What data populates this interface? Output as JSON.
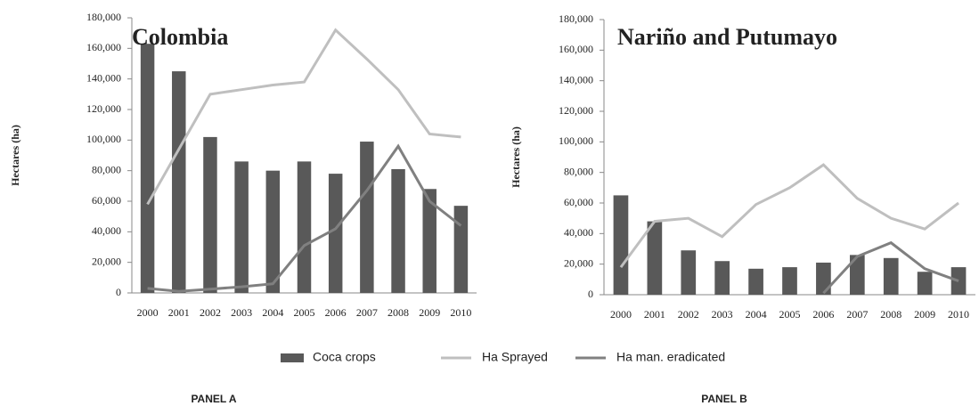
{
  "chart_data": [
    {
      "type": "combo",
      "title": "Colombia",
      "ylabel": "Hectares (ha)",
      "panel_label": "PANEL A",
      "categories": [
        "2000",
        "2001",
        "2002",
        "2003",
        "2004",
        "2005",
        "2006",
        "2007",
        "2008",
        "2009",
        "2010"
      ],
      "series": [
        {
          "name": "Coca crops",
          "kind": "bar",
          "color": "#595959",
          "values": [
            163000,
            145000,
            102000,
            86000,
            80000,
            86000,
            78000,
            99000,
            81000,
            68000,
            57000
          ]
        },
        {
          "name": "Ha Sprayed",
          "kind": "line",
          "color": "#bfbfbf",
          "values": [
            58000,
            94000,
            130000,
            133000,
            136000,
            138000,
            172000,
            153000,
            133000,
            104000,
            102000
          ]
        },
        {
          "name": "Ha man. eradicated",
          "kind": "line",
          "color": "#808080",
          "values": [
            3000,
            1000,
            2500,
            4000,
            6000,
            31000,
            42000,
            67000,
            96000,
            60000,
            44000
          ]
        }
      ],
      "ylim": [
        0,
        180000
      ],
      "yticks": [
        0,
        {
          "value": 20000,
          "label": "20,000"
        },
        {
          "value": 40000,
          "label": "40,000"
        },
        {
          "value": 60000,
          "label": "60,000"
        },
        {
          "value": 80000,
          "label": "80,000"
        },
        {
          "value": 100000,
          "label": "100,000"
        },
        {
          "value": 120000,
          "label": "120,000"
        },
        {
          "value": 140000,
          "label": "140,000"
        },
        {
          "value": 160000,
          "label": "160,000"
        },
        {
          "value": 180000,
          "label": "180,000"
        }
      ],
      "grid": false,
      "legend": "bottom"
    },
    {
      "type": "combo",
      "title": "Nariño and Putumayo",
      "ylabel": "Hectares (ha)",
      "panel_label": "PANEL B",
      "categories": [
        "2000",
        "2001",
        "2002",
        "2003",
        "2004",
        "2005",
        "2006",
        "2007",
        "2008",
        "2009",
        "2010"
      ],
      "series": [
        {
          "name": "Coca crops",
          "kind": "bar",
          "color": "#595959",
          "values": [
            65000,
            48000,
            29000,
            22000,
            17000,
            18000,
            21000,
            26000,
            24000,
            15000,
            18000
          ]
        },
        {
          "name": "Ha Sprayed",
          "kind": "line",
          "color": "#bfbfbf",
          "values": [
            18000,
            48000,
            50000,
            38000,
            59000,
            70000,
            85000,
            63000,
            50000,
            43000,
            60000
          ]
        },
        {
          "name": "Ha man. eradicated",
          "kind": "line",
          "color": "#808080",
          "values": [
            null,
            null,
            null,
            null,
            null,
            null,
            1000,
            25000,
            34000,
            17000,
            9000
          ]
        }
      ],
      "ylim": [
        0,
        180000
      ],
      "yticks": [
        0,
        {
          "value": 20000,
          "label": "20,000"
        },
        {
          "value": 40000,
          "label": "40,000"
        },
        {
          "value": 60000,
          "label": "60,000"
        },
        {
          "value": 80000,
          "label": "80,000"
        },
        {
          "value": 100000,
          "label": "100,000"
        },
        {
          "value": 120000,
          "label": "120,000"
        },
        {
          "value": 140000,
          "label": "140,000"
        },
        {
          "value": 160000,
          "label": "160,000"
        },
        {
          "value": 180000,
          "label": "180,000"
        }
      ],
      "grid": false
    }
  ]
}
